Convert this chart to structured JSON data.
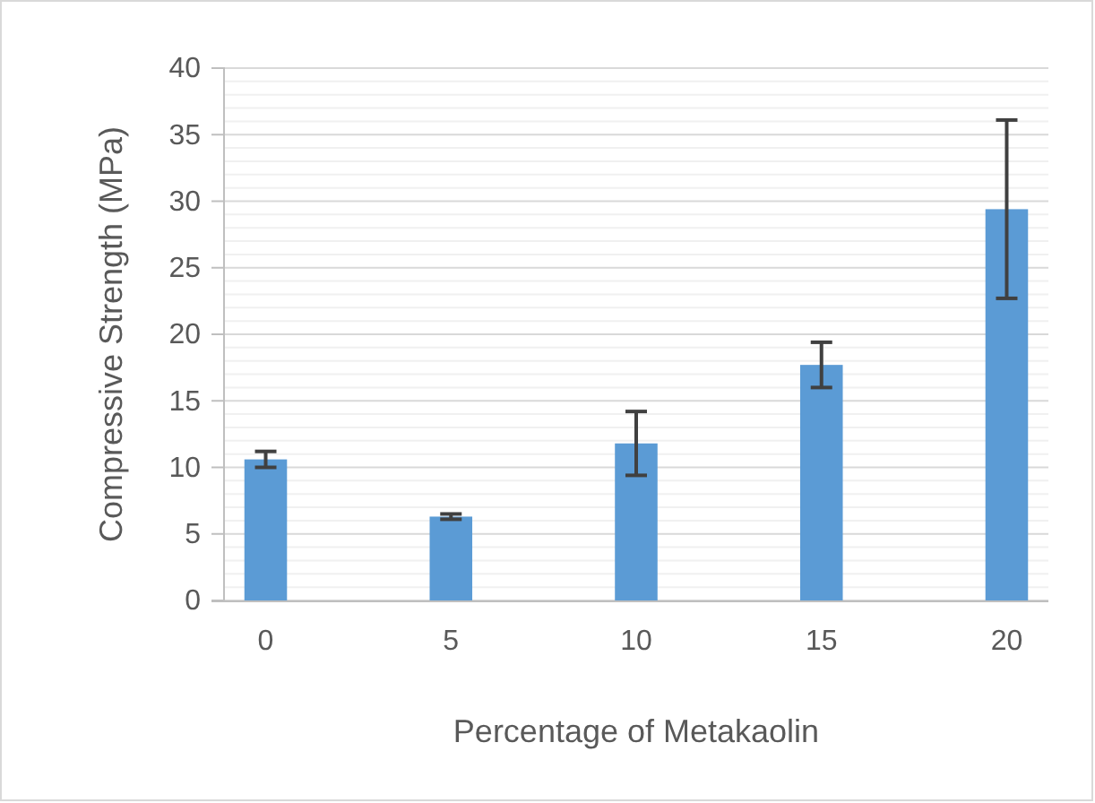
{
  "chart_data": {
    "type": "bar",
    "xlabel": "Percentage of Metakaolin",
    "ylabel": "Compressive Strength (MPa)",
    "categories": [
      "0",
      "5",
      "10",
      "15",
      "20"
    ],
    "values": [
      10.6,
      6.3,
      11.8,
      17.7,
      29.4
    ],
    "errors": [
      0.6,
      0.2,
      2.4,
      1.7,
      6.7
    ],
    "color": "#5b9bd5",
    "ylim": [
      0,
      40
    ],
    "yticks": [
      0,
      5,
      10,
      15,
      20,
      25,
      30,
      35,
      40
    ],
    "grid": true
  }
}
